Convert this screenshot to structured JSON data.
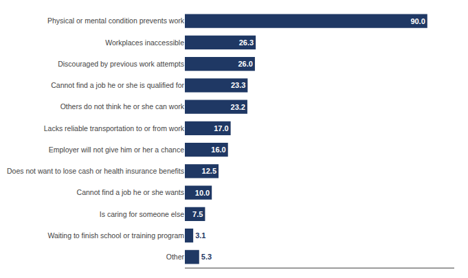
{
  "chart_data": {
    "type": "bar",
    "orientation": "horizontal",
    "categories": [
      "Physical or mental condition prevents work",
      "Workplaces inaccessible",
      "Discouraged by previous work attempts",
      "Cannot find a job he or she is qualified for",
      "Others do not think he or she can work",
      "Lacks reliable transportation to or from work",
      "Employer will not give him or her a chance",
      "Does not want to lose cash or health insurance benefits",
      "Cannot find a job he or she wants",
      "Is caring for someone else",
      "Waiting to finish school or training program",
      "Other"
    ],
    "values": [
      90.0,
      26.3,
      26.0,
      23.3,
      23.2,
      17.0,
      16.0,
      12.5,
      10.0,
      7.5,
      3.1,
      5.3
    ],
    "value_labels": [
      "90.0",
      "26.3",
      "26.0",
      "23.3",
      "23.2",
      "17.0",
      "16.0",
      "12.5",
      "10.0",
      "7.5",
      "3.1",
      "5.3"
    ],
    "color": "#1F3864",
    "xlim": [
      0,
      100
    ],
    "data_labels": true,
    "tick_labels": "y",
    "grid": false
  }
}
